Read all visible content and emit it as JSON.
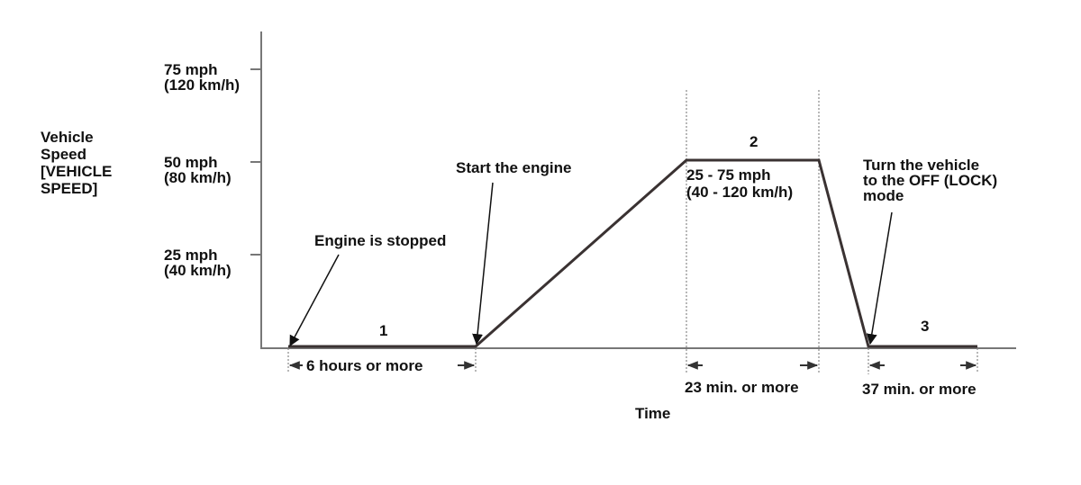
{
  "y_axis": {
    "label": [
      "Vehicle",
      "Speed",
      "[VEHICLE",
      "SPEED]"
    ],
    "ticks": [
      {
        "mph": "75 mph",
        "kmh": "(120 km/h)"
      },
      {
        "mph": "50 mph",
        "kmh": "(80 km/h)"
      },
      {
        "mph": "25 mph",
        "kmh": "(40 km/h)"
      }
    ]
  },
  "x_axis": {
    "label": "Time"
  },
  "phases": [
    {
      "number": "1",
      "duration": "6 hours or more"
    },
    {
      "number": "2",
      "duration": "23 min. or more",
      "range": [
        "25 - 75 mph",
        "(40 - 120 km/h)"
      ]
    },
    {
      "number": "3",
      "duration": "37 min. or more"
    }
  ],
  "annotations": {
    "engine_stopped": "Engine is stopped",
    "start_engine": "Start the engine",
    "turn_off": [
      "Turn the vehicle",
      "to the OFF (LOCK)",
      "mode"
    ]
  },
  "colors": {
    "line": "#3a3232",
    "axis": "#777777",
    "text": "#111111"
  }
}
